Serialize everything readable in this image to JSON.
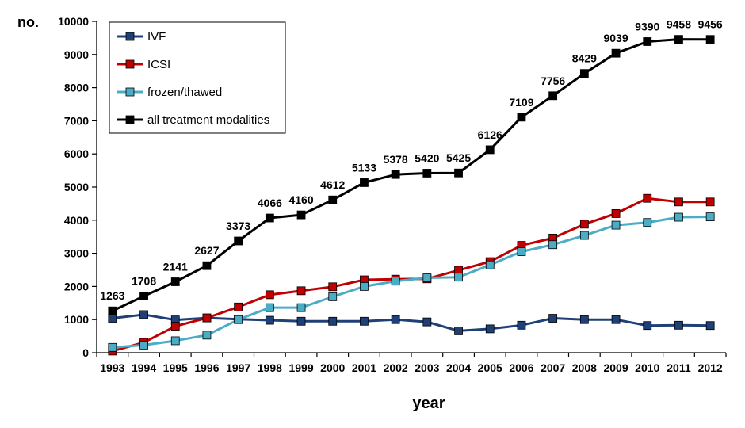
{
  "chart_data": {
    "type": "line",
    "title": "",
    "xlabel": "year",
    "ylabel": "no.",
    "ylim": [
      0,
      10000
    ],
    "yticks": [
      "0",
      "1000",
      "2000",
      "3000",
      "4000",
      "5000",
      "6000",
      "7000",
      "8000",
      "9000",
      "10000"
    ],
    "x": [
      "1993",
      "1994",
      "1995",
      "1996",
      "1997",
      "1998",
      "1999",
      "2000",
      "2001",
      "2002",
      "2003",
      "2004",
      "2005",
      "2006",
      "2007",
      "2008",
      "2009",
      "2010",
      "2011",
      "2012"
    ],
    "grid": false,
    "legend_position": "top-left",
    "series": [
      {
        "name": "IVF",
        "color": "#1f3f77",
        "values": [
          1040,
          1150,
          990,
          1050,
          1010,
          980,
          950,
          950,
          950,
          1000,
          930,
          660,
          720,
          830,
          1040,
          1000,
          1000,
          820,
          830,
          820
        ]
      },
      {
        "name": "ICSI",
        "color": "#c00000",
        "values": [
          50,
          310,
          800,
          1050,
          1380,
          1750,
          1870,
          1990,
          2200,
          2220,
          2230,
          2490,
          2750,
          3240,
          3460,
          3880,
          4200,
          4660,
          4550,
          4550
        ]
      },
      {
        "name": "frozen/thawed",
        "color": "#4bacc6",
        "values": [
          160,
          230,
          360,
          530,
          1000,
          1360,
          1360,
          1690,
          2000,
          2160,
          2260,
          2280,
          2650,
          3050,
          3260,
          3540,
          3850,
          3930,
          4090,
          4100
        ]
      },
      {
        "name": "all treatment modalities",
        "color": "#000000",
        "values": [
          1263,
          1708,
          2141,
          2627,
          3373,
          4066,
          4160,
          4612,
          5133,
          5378,
          5420,
          5425,
          6126,
          7109,
          7756,
          8429,
          9039,
          9390,
          9458,
          9456
        ],
        "data_labels": [
          "1263",
          "1708",
          "2141",
          "2627",
          "3373",
          "4066",
          "4160",
          "4612",
          "5133",
          "5378",
          "5420",
          "5425",
          "6126",
          "7109",
          "7756",
          "8429",
          "9039",
          "9390",
          "9458",
          "9456"
        ]
      }
    ]
  }
}
